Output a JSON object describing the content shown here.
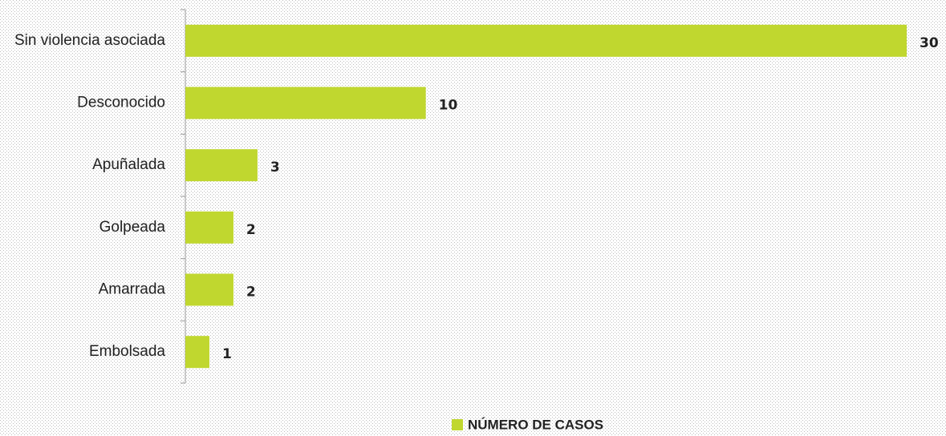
{
  "chart_data": {
    "type": "barh",
    "categories": [
      "Sin violencia asociada",
      "Desconocido",
      "Apuñalada",
      "Golpeada",
      "Amarrada",
      "Embolsada"
    ],
    "series": [
      {
        "name": "NÚMERO DE CASOS",
        "color": "#c0d72f",
        "values": [
          30,
          10,
          3,
          2,
          2,
          1
        ]
      }
    ],
    "xlim": [
      0,
      30
    ],
    "legend": "bottom"
  }
}
